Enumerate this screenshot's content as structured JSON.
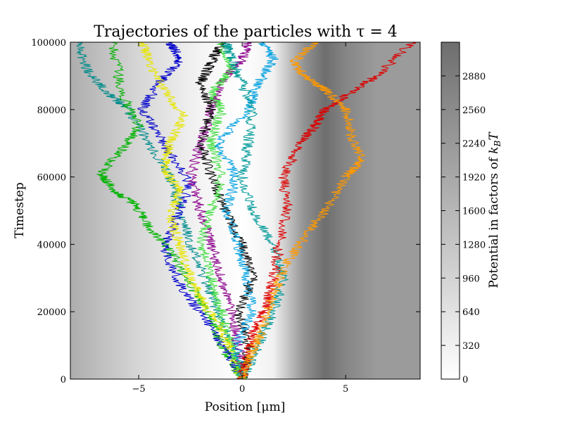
{
  "chart_data": {
    "type": "line",
    "title": "Trajectories of the particles with τ = 4",
    "xlabel": "Position [μm]",
    "ylabel": "Timestep",
    "xlim": [
      -8.3,
      8.6
    ],
    "ylim": [
      0,
      100000
    ],
    "x_ticks": [
      -5,
      0,
      5
    ],
    "x_tick_labels": [
      "−5",
      "0",
      "5"
    ],
    "y_ticks": [
      0,
      20000,
      40000,
      60000,
      80000,
      100000
    ],
    "y_tick_labels": [
      "0",
      "20000",
      "40000",
      "60000",
      "80000",
      "100000"
    ],
    "grid": false,
    "legend": "none",
    "background": {
      "description": "grayscale potential map along position",
      "x": [
        -8.3,
        -5,
        -2,
        0,
        1.5,
        3,
        4,
        5,
        6.5,
        8.6
      ],
      "potential": [
        1800,
        900,
        250,
        0,
        300,
        2400,
        3300,
        2700,
        2200,
        2200
      ]
    },
    "colorbar": {
      "label": "Potential in factors of k_B T",
      "label_main": "Potential in factors of ",
      "label_symbol": "k",
      "label_sub": "B",
      "label_tail": "T",
      "range": [
        0,
        3200
      ],
      "ticks": [
        0,
        320,
        640,
        960,
        1280,
        1600,
        1920,
        2240,
        2560,
        2880
      ],
      "tick_labels": [
        "0",
        "320",
        "640",
        "960",
        "1280",
        "1600",
        "1920",
        "2240",
        "2560",
        "2880"
      ]
    },
    "series": [
      {
        "color": "#008b8b",
        "x": [
          0.0,
          -0.5,
          -1.2,
          -1.8,
          -2.5,
          -3.0,
          -3.5,
          -4.5,
          -5.5,
          -6.5,
          -7.5,
          -8.0
        ],
        "y": [
          0,
          10000,
          20000,
          30000,
          40000,
          50000,
          60000,
          70000,
          80000,
          85000,
          92000,
          100000
        ]
      },
      {
        "color": "#00b300",
        "x": [
          0.0,
          -0.8,
          -1.5,
          -2.5,
          -3.5,
          -4.5,
          -5.2,
          -6.2,
          -6.8,
          -5.8,
          -5.0,
          -5.8,
          -6.3
        ],
        "y": [
          0,
          8000,
          18000,
          28000,
          38000,
          45000,
          52000,
          56000,
          61000,
          68000,
          75000,
          85000,
          100000
        ]
      },
      {
        "color": "#0000cc",
        "x": [
          0.0,
          -0.7,
          -1.8,
          -2.8,
          -3.8,
          -3.2,
          -2.5,
          -3.8,
          -4.8,
          -4.0,
          -3.0,
          -3.5
        ],
        "y": [
          0,
          8000,
          18000,
          26000,
          38000,
          48000,
          58000,
          70000,
          80000,
          88000,
          95000,
          100000
        ]
      },
      {
        "color": "#e6e600",
        "x": [
          0.0,
          -0.5,
          -1.0,
          -1.8,
          -2.5,
          -3.0,
          -3.5,
          -3.0,
          -3.8,
          -3.5,
          -2.8,
          -3.8,
          -4.5,
          -4.8
        ],
        "y": [
          0,
          8000,
          15000,
          22000,
          30000,
          40000,
          48000,
          56000,
          63000,
          70000,
          78000,
          86000,
          94000,
          100000
        ]
      },
      {
        "color": "#8b008b",
        "x": [
          0.0,
          -0.2,
          -0.5,
          -1.0,
          -1.5,
          -2.0,
          -2.5,
          -2.0,
          -1.5,
          -1.0,
          0.0,
          0.3
        ],
        "y": [
          0,
          10000,
          20000,
          30000,
          40000,
          50000,
          60000,
          70000,
          80000,
          88000,
          95000,
          100000
        ]
      },
      {
        "color": "#000000",
        "x": [
          0.0,
          0.3,
          -0.2,
          0.5,
          0.0,
          -0.8,
          -1.5,
          -2.0,
          -1.5,
          -2.0,
          -1.5,
          -1.0
        ],
        "y": [
          0,
          10000,
          20000,
          30000,
          40000,
          50000,
          60000,
          70000,
          80000,
          88000,
          94000,
          100000
        ]
      },
      {
        "color": "#44dd44",
        "x": [
          0.0,
          -0.5,
          -1.0,
          -1.5,
          -2.0,
          -1.5,
          -1.0,
          -1.5,
          -1.0,
          -1.5,
          -0.5,
          -1.0
        ],
        "y": [
          0,
          10000,
          20000,
          30000,
          40000,
          50000,
          60000,
          70000,
          80000,
          85000,
          92000,
          100000
        ]
      },
      {
        "color": "#00a0e0",
        "x": [
          0.0,
          -0.3,
          0.5,
          0.2,
          -0.2,
          -0.8,
          -0.3,
          -1.2,
          0.3,
          0.8,
          1.5,
          1.0
        ],
        "y": [
          0,
          10000,
          20000,
          30000,
          40000,
          50000,
          60000,
          70000,
          80000,
          88000,
          95000,
          100000
        ]
      },
      {
        "color": "#009999",
        "x": [
          0.0,
          0.8,
          1.5,
          2.0,
          1.5,
          0.5,
          0.0,
          0.3,
          0.5,
          0.0,
          -0.5,
          -0.8
        ],
        "y": [
          0,
          10000,
          20000,
          30000,
          40000,
          50000,
          60000,
          70000,
          80000,
          88000,
          95000,
          100000
        ]
      },
      {
        "color": "#dd0000",
        "x": [
          0.0,
          0.3,
          0.6,
          1.2,
          1.5,
          1.8,
          2.2,
          2.0,
          2.8,
          3.5,
          4.0,
          5.0,
          6.5,
          8.2
        ],
        "y": [
          0,
          8000,
          15000,
          22000,
          30000,
          40000,
          50000,
          60000,
          70000,
          75000,
          80000,
          84000,
          90000,
          100000
        ]
      },
      {
        "color": "#ff9900",
        "x": [
          0.0,
          0.5,
          1.0,
          1.5,
          2.2,
          3.0,
          4.0,
          5.0,
          5.8,
          5.3,
          5.0,
          4.0,
          3.0,
          2.5,
          3.5
        ],
        "y": [
          0,
          8000,
          15000,
          25000,
          35000,
          42000,
          50000,
          60000,
          65000,
          72000,
          80000,
          86000,
          90000,
          94000,
          100000
        ]
      }
    ]
  }
}
